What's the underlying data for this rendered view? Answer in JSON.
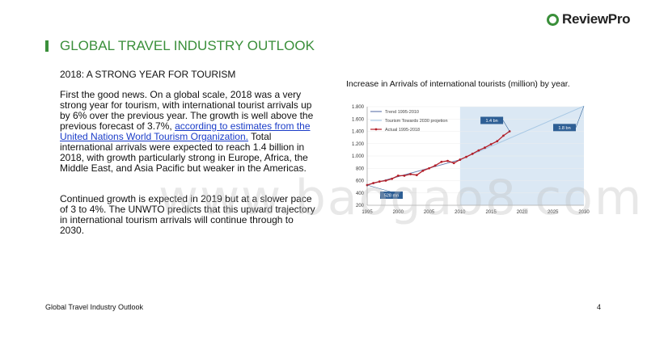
{
  "brand": {
    "name": "ReviewPro"
  },
  "header": {
    "title": "GLOBAL TRAVEL INDUSTRY OUTLOOK"
  },
  "content": {
    "subtitle": "2018: A STRONG YEAR FOR TOURISM",
    "p1_before_link": "First the good news. On a global scale, 2018 was a very strong year for tourism, with international tourist arrivals up by 6% over the previous year. The growth is well above the previous forecast of 3.7%, ",
    "p1_link": "according to estimates from the United Nations World Tourism Organization.",
    "p1_after_link": " Total international arrivals were expected to reach 1.4 billion in 2018, with growth particularly strong in Europe, Africa, the Middle East, and Asia Pacific but weaker in the Americas.",
    "p2": "Continued growth is expected in 2019 but at a slower pace of 3 to 4%. The UNWTO predicts that this upward trajectory in international tourism arrivals will continue through to 2030."
  },
  "chart_data": {
    "type": "line",
    "title": "Increase in Arrivals of international tourists (million) by year.",
    "yticks": [
      "1.800",
      "1.600",
      "1.400",
      "1.200",
      "1.000",
      "800",
      "600",
      "400",
      "200"
    ],
    "xticks": [
      "1995",
      "2000",
      "2005",
      "2010",
      "2015",
      "2020",
      "2025",
      "2030"
    ],
    "ylim": [
      200,
      1800
    ],
    "xlim": [
      1995,
      2030
    ],
    "legend_position": "top-left",
    "series": [
      {
        "name": "Trend 1995-2010",
        "color": "#6a7fb0",
        "x": [
          1995,
          2010
        ],
        "y": [
          528,
          940
        ]
      },
      {
        "name": "Tourism Towards 2030 projetion",
        "color": "#a8c8e4",
        "x": [
          2010,
          2030
        ],
        "y": [
          940,
          1809
        ]
      },
      {
        "name": "Actual 1995-2018",
        "color": "#b3202a",
        "x": [
          1995,
          1996,
          1997,
          1998,
          1999,
          2000,
          2001,
          2002,
          2003,
          2004,
          2005,
          2006,
          2007,
          2008,
          2009,
          2010,
          2011,
          2012,
          2013,
          2014,
          2015,
          2016,
          2017,
          2018
        ],
        "y": [
          528,
          560,
          585,
          600,
          630,
          680,
          680,
          705,
          690,
          760,
          800,
          845,
          905,
          920,
          885,
          940,
          985,
          1035,
          1090,
          1135,
          1190,
          1240,
          1330,
          1400
        ]
      }
    ],
    "annotations": [
      {
        "text": "1.4 bn",
        "x": 2018,
        "y": 1400
      },
      {
        "text": "1.8 bn",
        "x": 2030,
        "y": 1809
      },
      {
        "text": "528 mn",
        "x": 1995,
        "y": 528
      }
    ]
  },
  "footer": {
    "left": "Global Travel Industry Outlook",
    "page": "4"
  },
  "watermark": "www.baogao8.com"
}
